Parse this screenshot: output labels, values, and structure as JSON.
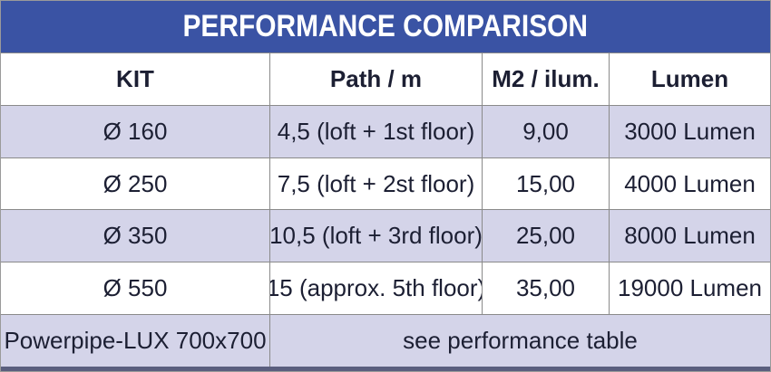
{
  "title": "PERFORMANCE COMPARISON",
  "colors": {
    "header_blue": "#3a53a4",
    "row_alt_lavender": "#d4d4e9",
    "row_white": "#ffffff",
    "cell_border": "#8a8a8a",
    "text": "#1c1f33",
    "bottom_bar": "#5a5e7e"
  },
  "table": {
    "columns": [
      "KIT",
      "Path / m",
      "M2 / ilum.",
      "Lumen"
    ],
    "rows": [
      {
        "kit": "Ø 160",
        "path": "4,5 (loft + 1st floor)",
        "m2": "9,00",
        "lumen": "3000 Lumen"
      },
      {
        "kit": "Ø 250",
        "path": "7,5 (loft + 2st floor)",
        "m2": "15,00",
        "lumen": "4000 Lumen"
      },
      {
        "kit": "Ø 350",
        "path": "10,5 (loft + 3rd floor)",
        "m2": "25,00",
        "lumen": "8000 Lumen"
      },
      {
        "kit": "Ø 550",
        "path": "15 (approx. 5th floor)",
        "m2": "35,00",
        "lumen": "19000 Lumen"
      }
    ],
    "footer_row": {
      "kit": "Powerpipe-LUX  700x700",
      "note": "see performance table"
    }
  }
}
